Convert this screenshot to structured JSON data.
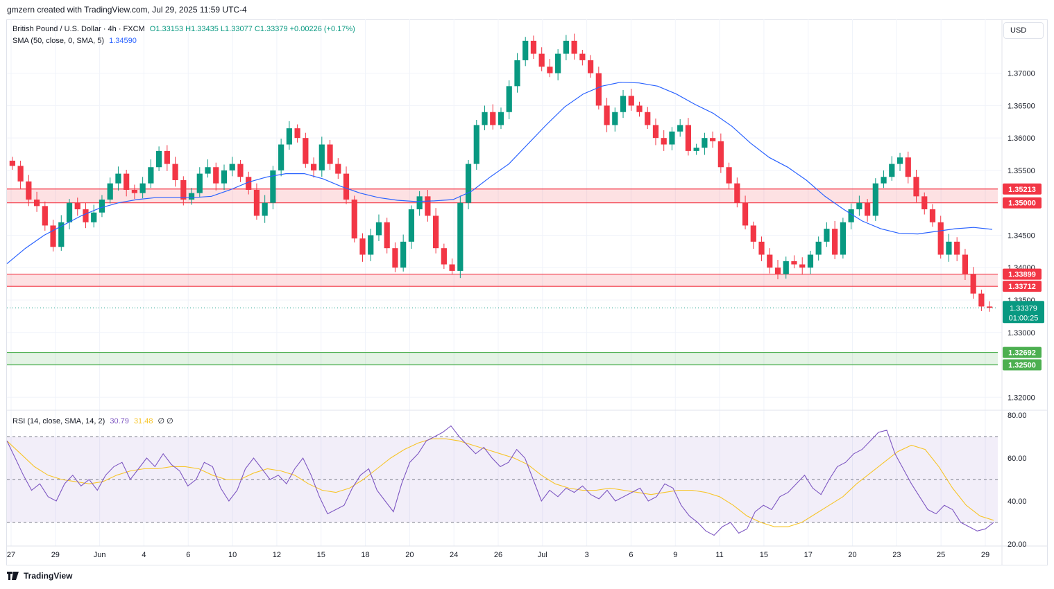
{
  "attribution": "gmzern created with TradingView.com, Jul 29, 2025 11:59 UTC-4",
  "legend": {
    "symbol": "British Pound / U.S. Dollar · 4h · FXCM",
    "ohlc": "O1.33153 H1.33435 L1.33077 C1.33379 +0.00226 (+0.17%)",
    "sma_label": "SMA (50, close, 0, SMA, 5)",
    "sma_value": "1.34590",
    "rsi_label": "RSI (14, close, SMA, 14, 2)",
    "rsi_value": "30.79",
    "rsi_ma_value": "31.48",
    "rsi_extra": "∅ ∅"
  },
  "currency": "USD",
  "logo_text": "TradingView",
  "colors": {
    "up": "#089981",
    "down": "#f23645",
    "sma": "#2962ff",
    "rsi": "#7e57c2",
    "rsi_ma": "#f7c52a",
    "resistance_zone": "#f23645",
    "support_zone": "#4caf50"
  },
  "chart_data": [
    {
      "type": "candlestick",
      "title": "British Pound / U.S. Dollar · 4h · FXCM",
      "y_ticks": [
        "1.37000",
        "1.36500",
        "1.36000",
        "1.35500",
        "1.34500",
        "1.34000",
        "1.33500",
        "1.33000",
        "1.32000"
      ],
      "ylim": [
        1.318,
        1.3783
      ],
      "x_ticks": [
        "27",
        "29",
        "Jun",
        "4",
        "6",
        "10",
        "12",
        "15",
        "18",
        "20",
        "24",
        "26",
        "Jul",
        "3",
        "6",
        "9",
        "11",
        "15",
        "17",
        "20",
        "23",
        "25",
        "29"
      ],
      "last_price": "1.33379",
      "countdown": "01:00:25",
      "zones": [
        {
          "name": "resistance",
          "top": "1.35213",
          "bottom": "1.35000"
        },
        {
          "name": "resistance",
          "top": "1.33899",
          "bottom": "1.33712"
        },
        {
          "name": "support",
          "top": "1.32692",
          "bottom": "1.32500"
        }
      ],
      "series_close_path": [
        1.3557,
        1.3533,
        1.3505,
        1.3495,
        1.3465,
        1.3432,
        1.347,
        1.35,
        1.349,
        1.347,
        1.3485,
        1.3505,
        1.353,
        1.3545,
        1.352,
        1.3515,
        1.353,
        1.3555,
        1.358,
        1.356,
        1.3535,
        1.3505,
        1.3515,
        1.3545,
        1.3555,
        1.353,
        1.355,
        1.356,
        1.354,
        1.352,
        1.348,
        1.35,
        1.355,
        1.359,
        1.3615,
        1.36,
        1.356,
        1.355,
        1.359,
        1.356,
        1.3545,
        1.3505,
        1.3445,
        1.342,
        1.345,
        1.347,
        1.343,
        1.34,
        1.344,
        1.349,
        1.351,
        1.348,
        1.343,
        1.3405,
        1.3395,
        1.35,
        1.356,
        1.362,
        1.364,
        1.362,
        1.364,
        1.368,
        1.372,
        1.375,
        1.373,
        1.371,
        1.37,
        1.373,
        1.375,
        1.373,
        1.372,
        1.37,
        1.365,
        1.362,
        1.364,
        1.3665,
        1.365,
        1.364,
        1.362,
        1.36,
        1.359,
        1.361,
        1.362,
        1.358,
        1.3585,
        1.36,
        1.3595,
        1.3555,
        1.353,
        1.35,
        1.3465,
        1.344,
        1.342,
        1.34,
        1.339,
        1.341,
        1.3405,
        1.34,
        1.342,
        1.344,
        1.346,
        1.342,
        1.347,
        1.349,
        1.35,
        1.348,
        1.353,
        1.354,
        1.356,
        1.357,
        1.354,
        1.351,
        1.349,
        1.347,
        1.342,
        1.344,
        1.342,
        1.339,
        1.336,
        1.334,
        1.3338
      ],
      "sma_path": [
        1.3406,
        1.343,
        1.345,
        1.3465,
        1.348,
        1.3492,
        1.35,
        1.3505,
        1.3508,
        1.3508,
        1.3508,
        1.351,
        1.352,
        1.3532,
        1.354,
        1.3545,
        1.3545,
        1.3537,
        1.3525,
        1.3515,
        1.3508,
        1.3504,
        1.3502,
        1.3503,
        1.3505,
        1.3518,
        1.354,
        1.356,
        1.359,
        1.362,
        1.3648,
        1.3668,
        1.368,
        1.3686,
        1.3685,
        1.368,
        1.3668,
        1.3652,
        1.3638,
        1.3618,
        1.3592,
        1.357,
        1.3555,
        1.3535,
        1.351,
        1.349,
        1.3472,
        1.346,
        1.3453,
        1.3452,
        1.3456,
        1.346,
        1.3462,
        1.3459
      ]
    },
    {
      "type": "line",
      "title": "RSI (14, close, SMA, 14, 2)",
      "y_ticks": [
        "80.00",
        "60.00",
        "40.00",
        "20.00"
      ],
      "ylim": [
        19,
        81
      ],
      "bands": {
        "upper": 70,
        "middle": 50,
        "lower": 30
      },
      "series": [
        {
          "values": [
            68,
            60,
            52,
            45,
            48,
            42,
            40,
            48,
            52,
            47,
            50,
            45,
            52,
            56,
            58,
            50,
            55,
            60,
            56,
            62,
            57,
            54,
            47,
            50,
            58,
            56,
            46,
            40,
            45,
            55,
            60,
            55,
            50,
            52,
            48,
            55,
            60,
            52,
            42,
            34,
            36,
            38,
            46,
            52,
            55,
            45,
            40,
            35,
            48,
            58,
            62,
            68,
            70,
            72,
            75,
            70,
            66,
            62,
            65,
            60,
            56,
            58,
            64,
            60,
            50,
            40,
            45,
            42,
            46,
            44,
            47,
            43,
            41,
            45,
            40,
            42,
            44,
            46,
            40,
            42,
            48,
            46,
            38,
            33,
            30,
            26,
            24,
            28,
            30,
            25,
            27,
            35,
            38,
            36,
            42,
            44,
            48,
            52,
            46,
            43,
            50,
            56,
            58,
            62,
            64,
            68,
            72,
            73,
            62,
            55,
            48,
            42,
            36,
            34,
            38,
            36,
            30,
            28,
            26,
            27,
            30
          ]
        },
        {
          "values": [
            68,
            62,
            56,
            52,
            50,
            49,
            48,
            49,
            52,
            54,
            55,
            55,
            56,
            56,
            55,
            52,
            50,
            50,
            53,
            55,
            54,
            52,
            48,
            45,
            44,
            46,
            50,
            55,
            60,
            64,
            67,
            69,
            69,
            68,
            66,
            64,
            62,
            60,
            57,
            52,
            48,
            46,
            45,
            45,
            46,
            45,
            44,
            43,
            44,
            45,
            45,
            44,
            42,
            38,
            33,
            30,
            28,
            28,
            30,
            34,
            38,
            42,
            48,
            53,
            58,
            63,
            66,
            64,
            56,
            46,
            38,
            33,
            31
          ]
        }
      ]
    }
  ]
}
